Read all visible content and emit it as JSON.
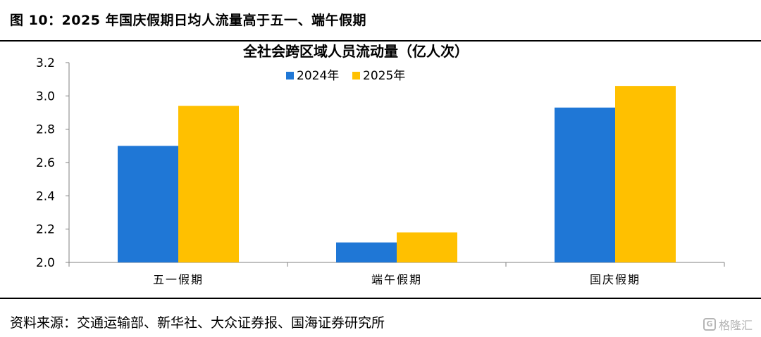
{
  "figure": {
    "title": "图 10：2025 年国庆假期日均人流量高于五一、端午假期",
    "source": "资料来源：交通运输部、新华社、大众证券报、国海证券研究所",
    "watermark": "格隆汇"
  },
  "colors": {
    "series_2024": "#1f77d6",
    "series_2025": "#ffc000",
    "axis": "#808080"
  },
  "chart_data": {
    "type": "bar",
    "title": "全社会跨区域人员流动量（亿人次）",
    "categories": [
      "五一假期",
      "端午假期",
      "国庆假期"
    ],
    "series": [
      {
        "name": "2024年",
        "values": [
          2.7,
          2.12,
          2.93
        ]
      },
      {
        "name": "2025年",
        "values": [
          2.94,
          2.18,
          3.06
        ]
      }
    ],
    "ylim": [
      2.0,
      3.2
    ],
    "yticks": [
      "2.0",
      "2.2",
      "2.4",
      "2.6",
      "2.8",
      "3.0",
      "3.2"
    ],
    "xlabel": "",
    "ylabel": "",
    "grid": false,
    "legend_position": "top-center"
  }
}
